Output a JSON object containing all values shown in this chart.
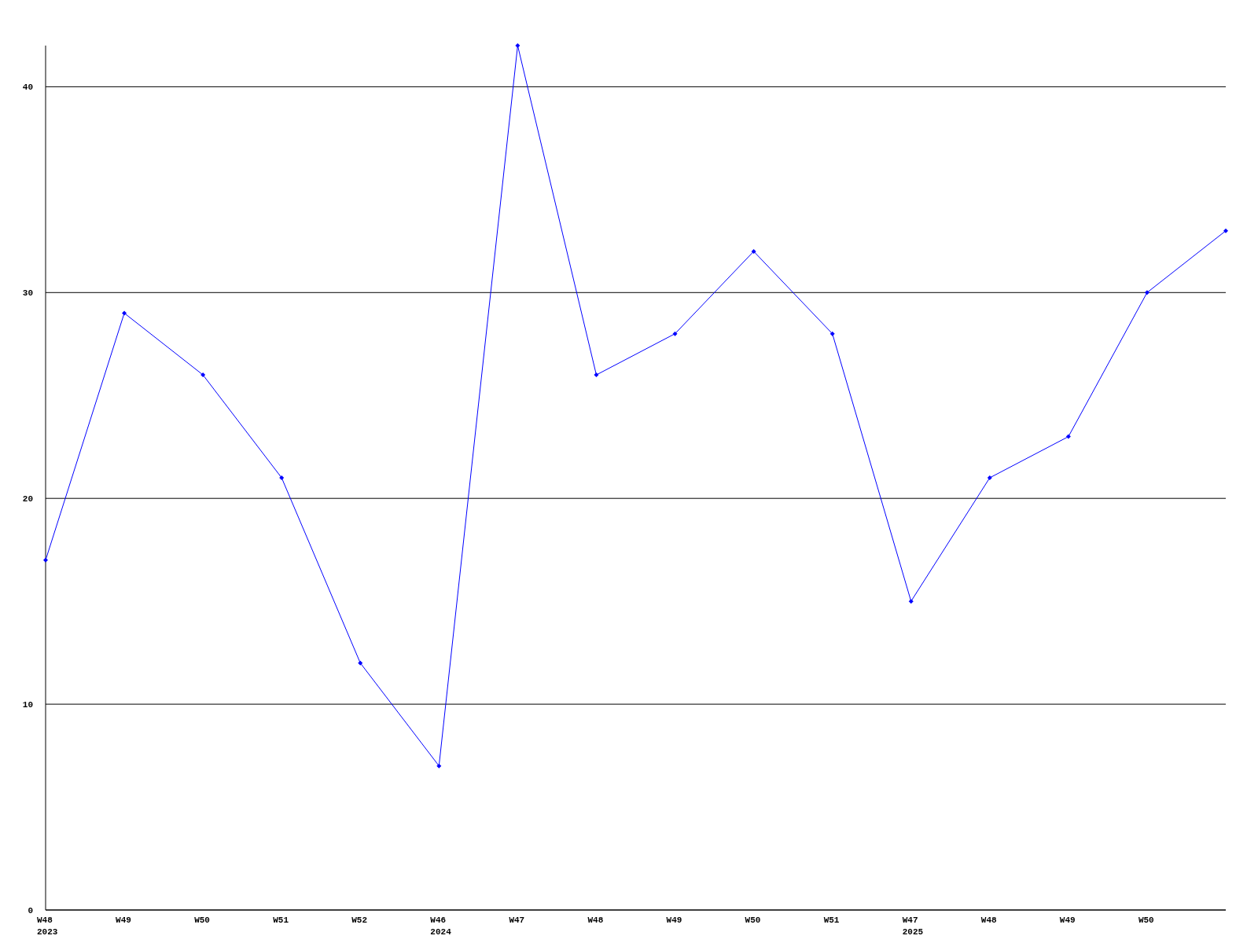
{
  "chart_data": {
    "type": "line",
    "categories": [
      "W48\n2023",
      "W49",
      "W50",
      "W51",
      "W52",
      "W46\n2024",
      "W47",
      "W48",
      "W49",
      "W50",
      "W51",
      "W47\n2025",
      "W48",
      "W49",
      "W50",
      null
    ],
    "series": [
      {
        "color": "#0000ff",
        "values": [
          17,
          29,
          26,
          21,
          12,
          7,
          42,
          26,
          28,
          32,
          28,
          15,
          21,
          23,
          30,
          33
        ]
      }
    ],
    "ylim": [
      0,
      42
    ],
    "yticks": [
      0,
      10,
      20,
      30,
      40
    ],
    "grid": "y",
    "marker": "diamond",
    "line_style": "solid"
  }
}
